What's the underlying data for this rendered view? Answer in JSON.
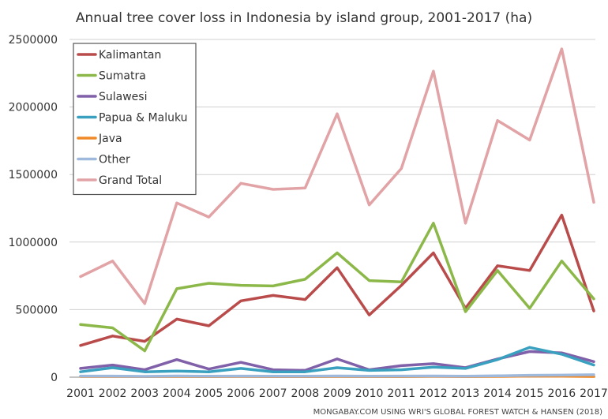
{
  "chart_data": {
    "type": "line",
    "title": "Annual tree cover loss in Indonesia by island group, 2001-2017 (ha)",
    "xlabel": "",
    "ylabel": "",
    "categories": [
      "2001",
      "2002",
      "2003",
      "2004",
      "2005",
      "2006",
      "2007",
      "2008",
      "2009",
      "2010",
      "2011",
      "2012",
      "2013",
      "2014",
      "2015",
      "2016",
      "2017"
    ],
    "ylim": [
      0,
      2500000
    ],
    "yticks": [
      "0",
      "500000",
      "1000000",
      "1500000",
      "2000000",
      "2500000"
    ],
    "grid": "horizontal",
    "legend_position": "top-left",
    "series": [
      {
        "name": "Kalimantan",
        "color": "#b94b4b",
        "values": [
          235000,
          305000,
          265000,
          430000,
          380000,
          565000,
          605000,
          575000,
          810000,
          460000,
          680000,
          920000,
          510000,
          825000,
          790000,
          1200000,
          490000
        ]
      },
      {
        "name": "Sumatra",
        "color": "#8cb84a",
        "values": [
          390000,
          365000,
          195000,
          655000,
          695000,
          680000,
          675000,
          725000,
          920000,
          715000,
          705000,
          1140000,
          485000,
          790000,
          510000,
          860000,
          580000
        ]
      },
      {
        "name": "Sulawesi",
        "color": "#8060a8",
        "values": [
          65000,
          90000,
          55000,
          130000,
          60000,
          110000,
          55000,
          50000,
          135000,
          55000,
          85000,
          100000,
          70000,
          135000,
          190000,
          180000,
          115000
        ]
      },
      {
        "name": "Papua & Maluku",
        "color": "#3aa0bf",
        "values": [
          40000,
          70000,
          40000,
          45000,
          40000,
          65000,
          40000,
          40000,
          70000,
          50000,
          55000,
          75000,
          65000,
          130000,
          220000,
          170000,
          90000
        ]
      },
      {
        "name": "Java",
        "color": "#f08a28",
        "values": [
          5000,
          5000,
          4000,
          5000,
          4000,
          5000,
          4000,
          4000,
          5000,
          4000,
          4000,
          6000,
          4000,
          6000,
          8000,
          7000,
          5000
        ]
      },
      {
        "name": "Other",
        "color": "#9fb9dc",
        "values": [
          8000,
          8000,
          6000,
          9000,
          7000,
          8000,
          7000,
          7000,
          9000,
          7000,
          8000,
          9000,
          7000,
          10000,
          14000,
          15000,
          18000
        ]
      },
      {
        "name": "Grand Total",
        "color": "#e2a3a6",
        "values": [
          745000,
          860000,
          545000,
          1290000,
          1185000,
          1435000,
          1390000,
          1400000,
          1950000,
          1275000,
          1545000,
          2265000,
          1140000,
          1900000,
          1755000,
          2430000,
          1295000
        ]
      }
    ]
  },
  "source": "MONGABAY.COM USING WRI'S GLOBAL FOREST WATCH & HANSEN (2018)"
}
